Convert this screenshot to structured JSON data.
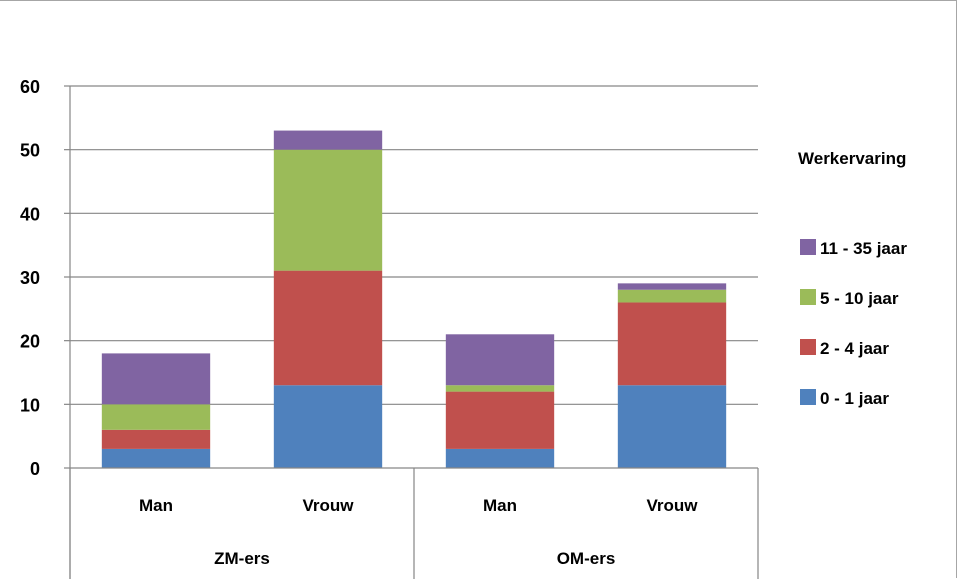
{
  "chart_data": {
    "type": "bar",
    "stacked": true,
    "groups": [
      {
        "label": "ZM-ers",
        "categories": [
          "Man",
          "Vrouw"
        ]
      },
      {
        "label": "OM-ers",
        "categories": [
          "Man",
          "Vrouw"
        ]
      }
    ],
    "categories": [
      "Man",
      "Vrouw",
      "Man",
      "Vrouw"
    ],
    "series": [
      {
        "name": "0 - 1 jaar",
        "color": "#4f81bd",
        "values": [
          3,
          13,
          3,
          13
        ]
      },
      {
        "name": "2 - 4 jaar",
        "color": "#c0504d",
        "values": [
          3,
          18,
          9,
          13
        ]
      },
      {
        "name": "5 - 10 jaar",
        "color": "#9bbb59",
        "values": [
          4,
          19,
          1,
          2
        ]
      },
      {
        "name": "11 - 35 jaar",
        "color": "#8064a2",
        "values": [
          8,
          3,
          8,
          1
        ]
      }
    ],
    "legend_title": "Werkervaring",
    "legend_position": "right",
    "ylim": [
      0,
      60
    ],
    "yticks": [
      0,
      10,
      20,
      30,
      40,
      50,
      60
    ],
    "grid": true,
    "gridline_color": "#868686"
  }
}
